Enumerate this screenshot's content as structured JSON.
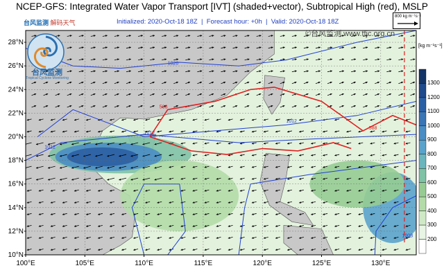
{
  "title": "NCEP-GFS: Integrated Water Vapor Transport [IVT] (shaded+vector), Subtropical High (red), MSLP",
  "subtitle": {
    "initialized": "Initialized: 2020-Oct-18 18Z",
    "forecast": "Forecast hour: +0h",
    "valid": "Valid: 2020-Oct-18 18Z",
    "sep": "|"
  },
  "brand": {
    "top_left_a": "台风监测",
    "top_left_b": "解码天气",
    "site": "©台风监测 www.tfjc.org.cn",
    "logo_name": "台风监测",
    "logo_sub": "Tropical Cyclone Monitoring"
  },
  "reference_vector": "800 kg m⁻¹s⁻¹",
  "colorbar": {
    "unit": "[kg m⁻¹s⁻¹]",
    "ticks": [
      "1300",
      "1200",
      "1100",
      "1000",
      "900",
      "800",
      "700",
      "600",
      "500",
      "400",
      "300",
      "200"
    ],
    "colors": [
      "#ffffff",
      "#e8f5e4",
      "#cfe9c6",
      "#b3dba9",
      "#96cc93",
      "#7fc2a6",
      "#6bb5bd",
      "#5aa3cc",
      "#4a8dc4",
      "#3a75b5",
      "#2b5fa4",
      "#1f4a8c",
      "#133466"
    ]
  },
  "axes": {
    "lat_labels": [
      "28°N",
      "26°N",
      "24°N",
      "22°N",
      "20°N",
      "18°N",
      "16°N",
      "14°N",
      "12°N",
      "10°N"
    ],
    "lon_labels": [
      "100°E",
      "105°E",
      "110°E",
      "115°E",
      "120°E",
      "125°E",
      "130°E"
    ]
  },
  "contour_labels": {
    "mslp": [
      "1020",
      "1012",
      "1012",
      "1012",
      "1008"
    ],
    "subtropical_high": [
      "588",
      "588"
    ]
  }
}
